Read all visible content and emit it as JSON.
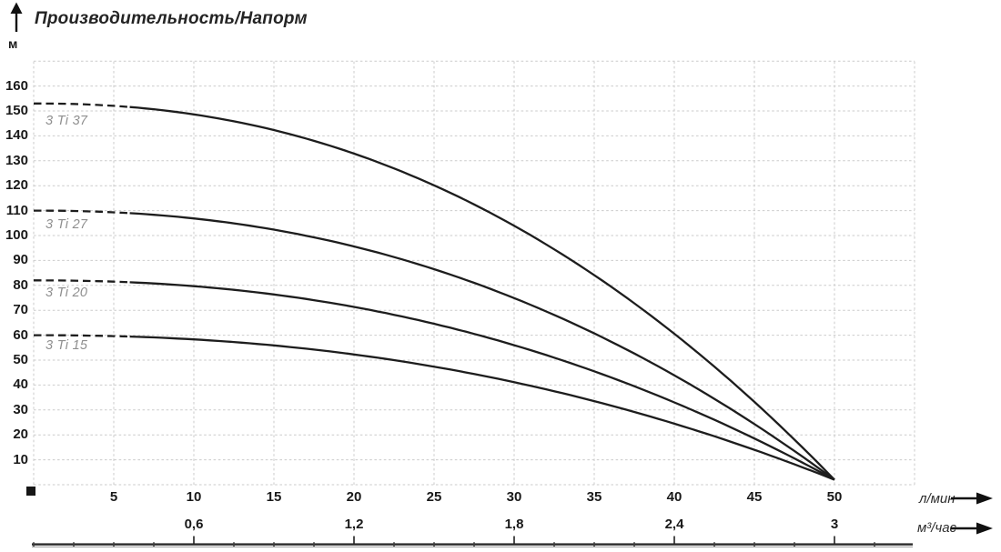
{
  "title": "Производительность/Напорм",
  "y_axis": {
    "unit": "м",
    "ticks": [
      {
        "label": "160",
        "h": 160
      },
      {
        "label": "150",
        "h": 150
      },
      {
        "label": "140",
        "h": 140
      },
      {
        "label": "130",
        "h": 130
      },
      {
        "label": "120",
        "h": 120
      },
      {
        "label": "110",
        "h": 110
      },
      {
        "label": "100",
        "h": 100
      },
      {
        "label": "90",
        "h": 90
      },
      {
        "label": "80",
        "h": 80
      },
      {
        "label": "70",
        "h": 70
      },
      {
        "label": "60",
        "h": 60
      },
      {
        "label": "50",
        "h": 50
      },
      {
        "label": "40",
        "h": 40
      },
      {
        "label": "30",
        "h": 30
      },
      {
        "label": "20",
        "h": 20
      },
      {
        "label": "10",
        "h": 10
      }
    ]
  },
  "x_axis_lmin": {
    "unit": "л/мин",
    "ticks": [
      {
        "label": "5",
        "q": 5
      },
      {
        "label": "10",
        "q": 10
      },
      {
        "label": "15",
        "q": 15
      },
      {
        "label": "20",
        "q": 20
      },
      {
        "label": "25",
        "q": 25
      },
      {
        "label": "30",
        "q": 30
      },
      {
        "label": "35",
        "q": 35
      },
      {
        "label": "40",
        "q": 40
      },
      {
        "label": "45",
        "q": 45
      },
      {
        "label": "50",
        "q": 50
      }
    ]
  },
  "x_axis_m3h": {
    "unit": "м³/час",
    "ticks": [
      {
        "label": "0,6",
        "q": 10
      },
      {
        "label": "1,2",
        "q": 20
      },
      {
        "label": "1,8",
        "q": 30
      },
      {
        "label": "2,4",
        "q": 40
      },
      {
        "label": "3",
        "q": 50
      }
    ]
  },
  "chart_data": {
    "type": "line",
    "title": "Производительность/Напорм",
    "xlabel_primary": "л/мин",
    "xlabel_secondary": "м³/час",
    "ylabel": "м",
    "xlim": [
      0,
      55
    ],
    "ylim": [
      0,
      170
    ],
    "grid": true,
    "x_lmin": [
      0,
      5,
      10,
      15,
      20,
      25,
      30,
      35,
      40,
      45,
      50
    ],
    "x_m3h": [
      0,
      0.3,
      0.6,
      0.9,
      1.2,
      1.5,
      1.8,
      2.1,
      2.4,
      2.7,
      3
    ],
    "series": [
      {
        "name": "3 Ti 37",
        "h0": 153,
        "label_h": 145.5,
        "values": [
          153,
          152,
          149,
          142,
          133,
          120,
          104,
          84,
          61,
          33,
          2
        ]
      },
      {
        "name": "3 Ti 27",
        "h0": 110,
        "label_h": 104,
        "values": [
          110,
          109,
          107,
          102,
          96,
          86,
          75,
          61,
          44,
          24,
          2
        ]
      },
      {
        "name": "3 Ti 20",
        "h0": 82,
        "label_h": 76.5,
        "values": [
          82,
          81,
          80,
          76,
          71,
          65,
          56,
          46,
          33,
          19,
          2
        ]
      },
      {
        "name": "3 Ti 15",
        "h0": 60,
        "label_h": 55.5,
        "values": [
          60,
          60,
          58,
          56,
          52,
          47,
          41,
          34,
          25,
          14,
          2
        ]
      }
    ],
    "q_end": 50,
    "h_end": 2,
    "curve_exponent": 2.2,
    "dashed_until_lmin": 6,
    "curve_color": "#1d1d1d",
    "grid_color": "#cbcbcb",
    "curve_label_color": "#8f8f8f",
    "scale_line_color": "#2b2b2b"
  }
}
